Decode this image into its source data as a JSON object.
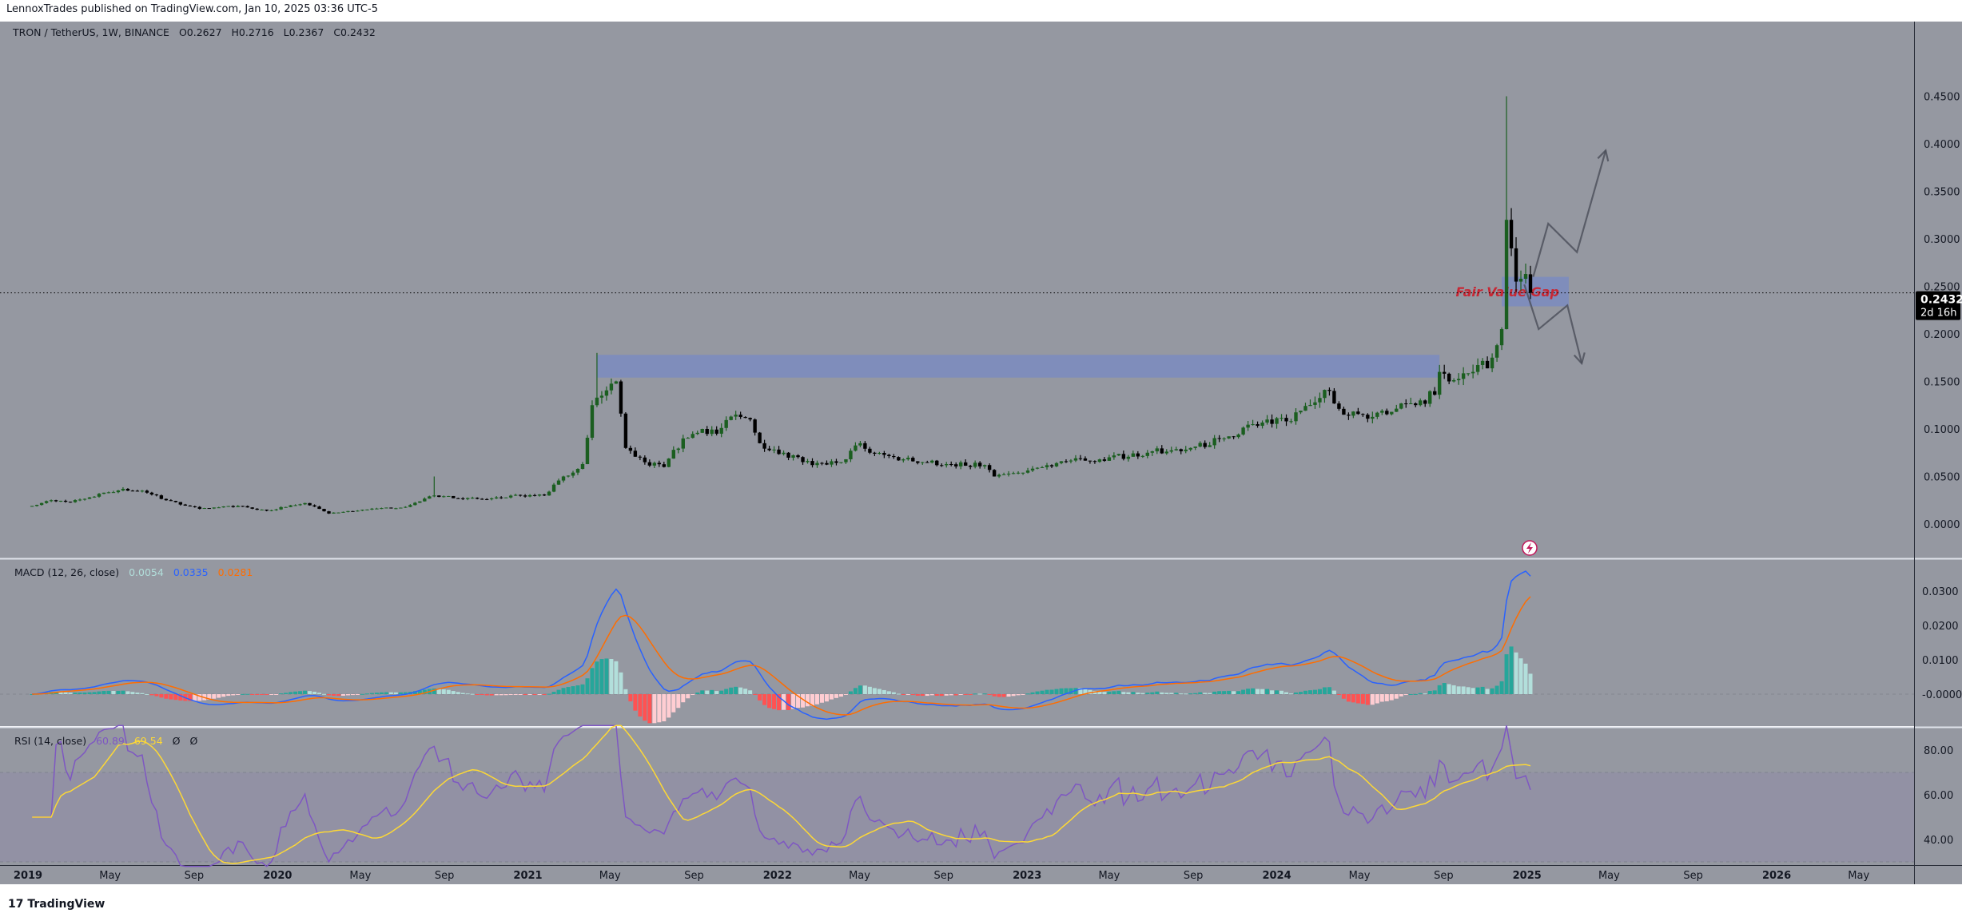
{
  "header": {
    "published": "LennoxTrades published on TradingView.com, Jan 10, 2025 03:36 UTC-5"
  },
  "symbol_legend": {
    "symbol": "TRON / TetherUS, 1W, BINANCE",
    "open": "O0.2627",
    "high": "H0.2716",
    "low": "L0.2367",
    "close": "C0.2432"
  },
  "last_price": {
    "value": "0.2432",
    "countdown": "2d 16h"
  },
  "macd_legend": {
    "label": "MACD (12, 26, close)",
    "hist": "0.0054",
    "macd": "0.0335",
    "signal": "0.0281"
  },
  "rsi_legend": {
    "label": "RSI (14, close)",
    "rsi": "60.89",
    "ma": "69.54",
    "extra1": "Ø",
    "extra2": "Ø"
  },
  "annotation": {
    "fvg_label": "Fair Value Gap"
  },
  "footer": {
    "logo": "TradingView"
  },
  "colors": {
    "background": "#9598a1",
    "up": "#1b5e20",
    "down": "#000000",
    "macd": "#2962ff",
    "signal": "#ff6d00",
    "rsi": "#7e57c2",
    "rsi_ma": "#fdd835",
    "zone": "#7b8bc0",
    "fvg_text": "#c62835"
  },
  "chart_data": {
    "type": "candlestick",
    "interval": "1W",
    "price_ticks": [
      "0.0000",
      "0.0500",
      "0.1000",
      "0.1500",
      "0.2000",
      "0.2500",
      "0.3000",
      "0.3500",
      "0.4000",
      "0.4500"
    ],
    "macd_ticks": [
      "-0.0000",
      "0.0100",
      "0.0200",
      "0.0300"
    ],
    "rsi_ticks": [
      "40.00",
      "60.00",
      "80.00"
    ],
    "rsi_bands": [
      30,
      70
    ],
    "time_ticks": [
      {
        "date": "2019-01-01",
        "label": "2019",
        "year": true
      },
      {
        "date": "2019-05-01",
        "label": "May"
      },
      {
        "date": "2019-09-01",
        "label": "Sep"
      },
      {
        "date": "2020-01-01",
        "label": "2020",
        "year": true
      },
      {
        "date": "2020-05-01",
        "label": "May"
      },
      {
        "date": "2020-09-01",
        "label": "Sep"
      },
      {
        "date": "2021-01-01",
        "label": "2021",
        "year": true
      },
      {
        "date": "2021-05-01",
        "label": "May"
      },
      {
        "date": "2021-09-01",
        "label": "Sep"
      },
      {
        "date": "2022-01-01",
        "label": "2022",
        "year": true
      },
      {
        "date": "2022-05-01",
        "label": "May"
      },
      {
        "date": "2022-09-01",
        "label": "Sep"
      },
      {
        "date": "2023-01-01",
        "label": "2023",
        "year": true
      },
      {
        "date": "2023-05-01",
        "label": "May"
      },
      {
        "date": "2023-09-01",
        "label": "Sep"
      },
      {
        "date": "2024-01-01",
        "label": "2024",
        "year": true
      },
      {
        "date": "2024-05-01",
        "label": "May"
      },
      {
        "date": "2024-09-01",
        "label": "Sep"
      },
      {
        "date": "2025-01-01",
        "label": "2025",
        "year": true
      },
      {
        "date": "2025-05-01",
        "label": "May"
      },
      {
        "date": "2025-09-01",
        "label": "Sep"
      },
      {
        "date": "2026-01-01",
        "label": "2026",
        "year": true
      },
      {
        "date": "2026-05-01",
        "label": "May"
      }
    ],
    "close_anchors": [
      [
        "2019-01-07",
        0.019
      ],
      [
        "2019-02-04",
        0.025
      ],
      [
        "2019-03-04",
        0.023
      ],
      [
        "2019-04-01",
        0.028
      ],
      [
        "2019-05-20",
        0.037
      ],
      [
        "2019-06-24",
        0.033
      ],
      [
        "2019-07-22",
        0.025
      ],
      [
        "2019-09-09",
        0.016
      ],
      [
        "2019-11-04",
        0.019
      ],
      [
        "2019-12-16",
        0.014
      ],
      [
        "2020-02-10",
        0.022
      ],
      [
        "2020-03-16",
        0.011
      ],
      [
        "2020-05-04",
        0.015
      ],
      [
        "2020-07-06",
        0.018
      ],
      [
        "2020-08-17",
        0.03
      ],
      [
        "2020-09-21",
        0.027
      ],
      [
        "2020-11-02",
        0.026
      ],
      [
        "2020-12-21",
        0.03
      ],
      [
        "2021-01-25",
        0.03
      ],
      [
        "2021-02-22",
        0.05
      ],
      [
        "2021-03-22",
        0.063
      ],
      [
        "2021-04-05",
        0.125
      ],
      [
        "2021-04-19",
        0.135
      ],
      [
        "2021-05-10",
        0.15
      ],
      [
        "2021-05-24",
        0.08
      ],
      [
        "2021-06-21",
        0.065
      ],
      [
        "2021-07-19",
        0.06
      ],
      [
        "2021-08-16",
        0.09
      ],
      [
        "2021-09-13",
        0.1
      ],
      [
        "2021-10-04",
        0.095
      ],
      [
        "2021-11-01",
        0.115
      ],
      [
        "2021-11-22",
        0.11
      ],
      [
        "2021-12-06",
        0.085
      ],
      [
        "2022-01-10",
        0.075
      ],
      [
        "2022-02-21",
        0.062
      ],
      [
        "2022-04-04",
        0.065
      ],
      [
        "2022-05-02",
        0.085
      ],
      [
        "2022-05-16",
        0.075
      ],
      [
        "2022-07-04",
        0.068
      ],
      [
        "2022-09-05",
        0.063
      ],
      [
        "2022-10-31",
        0.062
      ],
      [
        "2022-11-14",
        0.05
      ],
      [
        "2022-12-26",
        0.054
      ],
      [
        "2023-02-20",
        0.066
      ],
      [
        "2023-04-17",
        0.068
      ],
      [
        "2023-06-26",
        0.075
      ],
      [
        "2023-08-28",
        0.08
      ],
      [
        "2023-10-16",
        0.09
      ],
      [
        "2023-11-27",
        0.105
      ],
      [
        "2024-01-15",
        0.108
      ],
      [
        "2024-02-26",
        0.128
      ],
      [
        "2024-03-18",
        0.14
      ],
      [
        "2024-04-08",
        0.115
      ],
      [
        "2024-05-06",
        0.115
      ],
      [
        "2024-06-17",
        0.118
      ],
      [
        "2024-07-29",
        0.13
      ],
      [
        "2024-08-19",
        0.136
      ],
      [
        "2024-08-26",
        0.16
      ],
      [
        "2024-09-09",
        0.15
      ],
      [
        "2024-10-14",
        0.16
      ],
      [
        "2024-11-11",
        0.175
      ],
      [
        "2024-11-25",
        0.205
      ],
      [
        "2024-12-02",
        0.32
      ],
      [
        "2024-12-09",
        0.29
      ],
      [
        "2024-12-16",
        0.255
      ],
      [
        "2024-12-23",
        0.258
      ],
      [
        "2024-12-30",
        0.263
      ],
      [
        "2025-01-06",
        0.2432
      ]
    ],
    "notable_highs": [
      [
        "2021-04-12",
        0.18
      ],
      [
        "2020-08-17",
        0.05
      ],
      [
        "2024-12-02",
        0.45
      ]
    ],
    "last_candle": {
      "date": "2025-01-06",
      "open": 0.2627,
      "high": 0.2716,
      "low": 0.2367,
      "close": 0.2432
    },
    "zones": [
      {
        "name": "resistance-zone",
        "from": "2021-04-12",
        "to": "2024-08-26",
        "top": 0.178,
        "bottom": 0.154
      },
      {
        "name": "fair-value-gap",
        "from": "2024-11-25",
        "to": "2025-03-03",
        "top": 0.26,
        "bottom": 0.229
      }
    ],
    "projections": [
      {
        "name": "bullish-projection",
        "points": [
          [
            "2025-01-10",
            0.26
          ],
          [
            "2025-02-01",
            0.316
          ],
          [
            "2025-03-15",
            0.286
          ],
          [
            "2025-04-26",
            0.393
          ]
        ]
      },
      {
        "name": "bearish-projection",
        "points": [
          [
            "2024-12-28",
            0.252
          ],
          [
            "2025-01-18",
            0.205
          ],
          [
            "2025-03-01",
            0.23
          ],
          [
            "2025-03-22",
            0.169
          ]
        ]
      }
    ]
  }
}
